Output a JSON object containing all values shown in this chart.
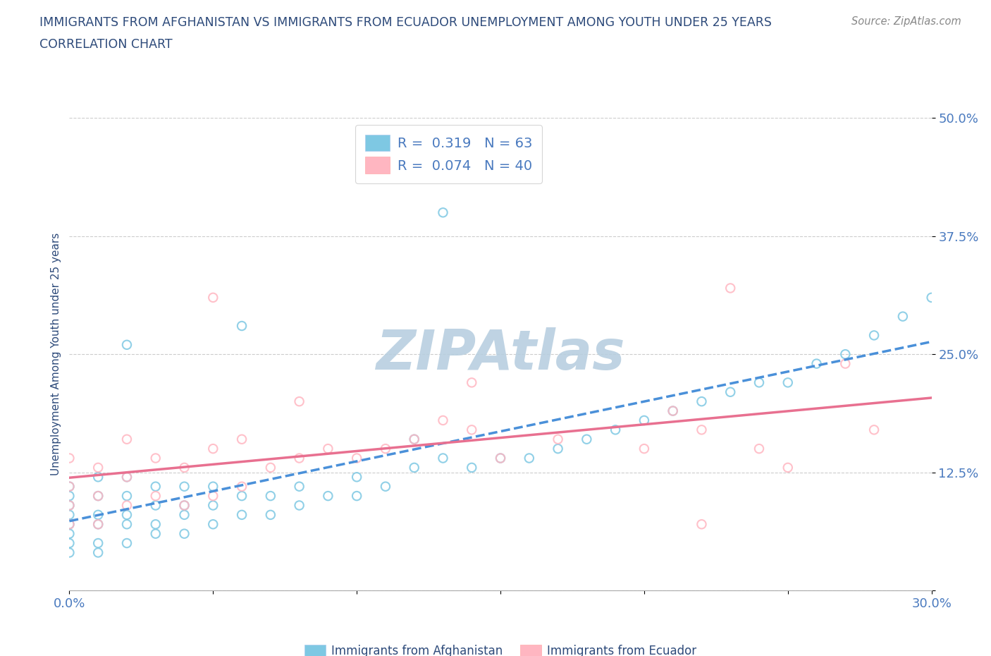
{
  "title_line1": "IMMIGRANTS FROM AFGHANISTAN VS IMMIGRANTS FROM ECUADOR UNEMPLOYMENT AMONG YOUTH UNDER 25 YEARS",
  "title_line2": "CORRELATION CHART",
  "source": "Source: ZipAtlas.com",
  "ylabel": "Unemployment Among Youth under 25 years",
  "xlim": [
    0.0,
    0.3
  ],
  "ylim": [
    0.0,
    0.5
  ],
  "yticks": [
    0.0,
    0.125,
    0.25,
    0.375,
    0.5
  ],
  "ytick_labels": [
    "",
    "12.5%",
    "25.0%",
    "37.5%",
    "50.0%"
  ],
  "xticks": [
    0.0,
    0.05,
    0.1,
    0.15,
    0.2,
    0.25,
    0.3
  ],
  "xtick_labels": [
    "0.0%",
    "",
    "",
    "",
    "",
    "",
    "30.0%"
  ],
  "afghanistan_color": "#7ec8e3",
  "ecuador_color": "#ffb6c1",
  "afghanistan_line_color": "#4a90d9",
  "ecuador_line_color": "#e87090",
  "afghanistan_R": 0.319,
  "afghanistan_N": 63,
  "ecuador_R": 0.074,
  "ecuador_N": 40,
  "afghanistan_scatter_x": [
    0.0,
    0.0,
    0.0,
    0.0,
    0.0,
    0.0,
    0.0,
    0.0,
    0.01,
    0.01,
    0.01,
    0.01,
    0.01,
    0.01,
    0.02,
    0.02,
    0.02,
    0.02,
    0.02,
    0.03,
    0.03,
    0.03,
    0.03,
    0.04,
    0.04,
    0.04,
    0.04,
    0.05,
    0.05,
    0.05,
    0.06,
    0.06,
    0.07,
    0.07,
    0.08,
    0.08,
    0.09,
    0.1,
    0.1,
    0.11,
    0.12,
    0.12,
    0.13,
    0.14,
    0.15,
    0.16,
    0.17,
    0.18,
    0.19,
    0.2,
    0.21,
    0.22,
    0.23,
    0.24,
    0.25,
    0.26,
    0.27,
    0.28,
    0.29,
    0.3,
    0.13,
    0.06,
    0.02
  ],
  "afghanistan_scatter_y": [
    0.04,
    0.05,
    0.06,
    0.07,
    0.08,
    0.09,
    0.1,
    0.11,
    0.04,
    0.05,
    0.07,
    0.08,
    0.1,
    0.12,
    0.05,
    0.07,
    0.08,
    0.1,
    0.12,
    0.06,
    0.07,
    0.09,
    0.11,
    0.06,
    0.08,
    0.09,
    0.11,
    0.07,
    0.09,
    0.11,
    0.08,
    0.1,
    0.08,
    0.1,
    0.09,
    0.11,
    0.1,
    0.1,
    0.12,
    0.11,
    0.13,
    0.16,
    0.14,
    0.13,
    0.14,
    0.14,
    0.15,
    0.16,
    0.17,
    0.18,
    0.19,
    0.2,
    0.21,
    0.22,
    0.22,
    0.24,
    0.25,
    0.27,
    0.29,
    0.31,
    0.4,
    0.28,
    0.26
  ],
  "ecuador_scatter_x": [
    0.0,
    0.0,
    0.0,
    0.0,
    0.01,
    0.01,
    0.01,
    0.02,
    0.02,
    0.02,
    0.03,
    0.03,
    0.04,
    0.04,
    0.05,
    0.05,
    0.06,
    0.06,
    0.07,
    0.08,
    0.09,
    0.1,
    0.11,
    0.12,
    0.13,
    0.14,
    0.15,
    0.17,
    0.2,
    0.21,
    0.22,
    0.23,
    0.24,
    0.25,
    0.27,
    0.28,
    0.14,
    0.05,
    0.08,
    0.22
  ],
  "ecuador_scatter_y": [
    0.07,
    0.09,
    0.11,
    0.14,
    0.07,
    0.1,
    0.13,
    0.09,
    0.12,
    0.16,
    0.1,
    0.14,
    0.09,
    0.13,
    0.1,
    0.15,
    0.11,
    0.16,
    0.13,
    0.14,
    0.15,
    0.14,
    0.15,
    0.16,
    0.18,
    0.17,
    0.14,
    0.16,
    0.15,
    0.19,
    0.17,
    0.32,
    0.15,
    0.13,
    0.24,
    0.17,
    0.22,
    0.31,
    0.2,
    0.07
  ],
  "watermark": "ZIPAtlas",
  "watermark_color": "#b8cfe0",
  "background_color": "#ffffff",
  "grid_color": "#cccccc",
  "title_color": "#2d4a7a",
  "tick_color": "#4a7abf",
  "legend_text_color": "#2d4a7a",
  "source_color": "#888888"
}
